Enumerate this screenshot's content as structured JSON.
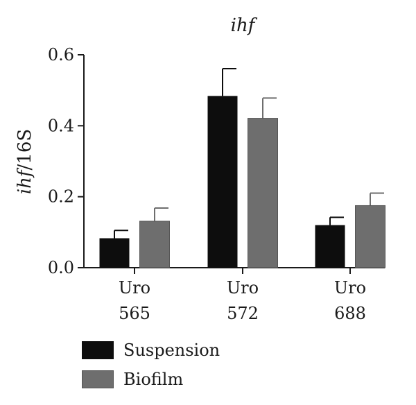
{
  "chart_data": {
    "type": "bar",
    "title": "ihf",
    "ylabel_italic": "ihf",
    "ylabel_rest": "/16S",
    "xlabel": "",
    "categories": [
      [
        "Uro",
        "565"
      ],
      [
        "Uro",
        "572"
      ],
      [
        "Uro",
        "688"
      ]
    ],
    "ylim": [
      0,
      0.6
    ],
    "yticks": [
      "0.0",
      "0.2",
      "0.4",
      "0.6"
    ],
    "grid": false,
    "legend_position": "bottom-left",
    "series": [
      {
        "name": "Suspension",
        "color": "#0d0d0d",
        "values": [
          0.083,
          0.484,
          0.12
        ],
        "errors": [
          0.022,
          0.077,
          0.022
        ]
      },
      {
        "name": "Biofilm",
        "color": "#6e6e6e",
        "values": [
          0.131,
          0.421,
          0.175
        ],
        "errors": [
          0.037,
          0.057,
          0.035
        ]
      }
    ]
  }
}
